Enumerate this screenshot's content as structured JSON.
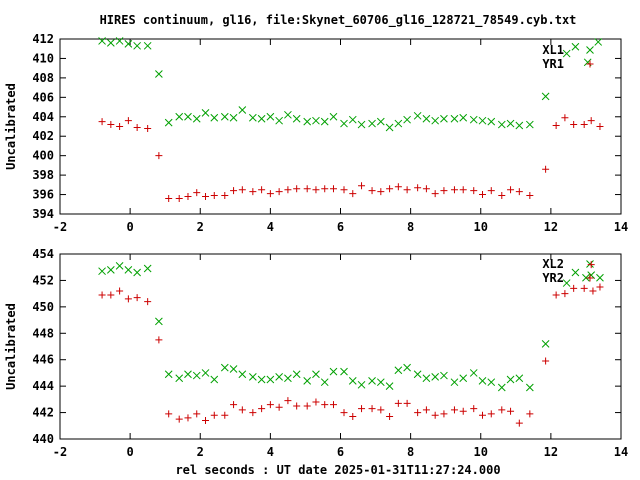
{
  "title": "HIRES continuum, gl16, file:Skynet_60706_gl16_128721_78549.cyb.txt",
  "xlabel": "rel seconds : UT date 2025-01-31T11:27:24.000",
  "colors": {
    "XL1": "#00a000",
    "YR1": "#cc0000",
    "XL2": "#00a000",
    "YR2": "#cc0000",
    "axes": "#000000"
  },
  "chart_data": [
    {
      "type": "scatter",
      "panel": "top",
      "ylabel": "Uncalibrated",
      "xlim": [
        -2,
        14
      ],
      "ylim": [
        394,
        412
      ],
      "xticks": [
        -2,
        0,
        2,
        4,
        6,
        8,
        10,
        12,
        14
      ],
      "yticks": [
        394,
        396,
        398,
        400,
        402,
        404,
        406,
        408,
        410,
        412
      ],
      "legend_position": "top-right",
      "grid": false,
      "series": [
        {
          "name": "XL1",
          "marker": "x",
          "points": [
            [
              -0.8,
              411.8
            ],
            [
              -0.55,
              411.6
            ],
            [
              -0.3,
              411.8
            ],
            [
              -0.05,
              411.5
            ],
            [
              0.2,
              411.3
            ],
            [
              0.5,
              411.3
            ],
            [
              0.82,
              408.4
            ],
            [
              1.1,
              403.4
            ],
            [
              1.4,
              404.0
            ],
            [
              1.65,
              404.0
            ],
            [
              1.9,
              403.8
            ],
            [
              2.15,
              404.4
            ],
            [
              2.4,
              403.9
            ],
            [
              2.7,
              404.0
            ],
            [
              2.95,
              403.9
            ],
            [
              3.2,
              404.7
            ],
            [
              3.5,
              403.9
            ],
            [
              3.75,
              403.8
            ],
            [
              4.0,
              404.0
            ],
            [
              4.25,
              403.6
            ],
            [
              4.5,
              404.2
            ],
            [
              4.75,
              403.8
            ],
            [
              5.05,
              403.5
            ],
            [
              5.3,
              403.6
            ],
            [
              5.55,
              403.5
            ],
            [
              5.8,
              404.0
            ],
            [
              6.1,
              403.3
            ],
            [
              6.35,
              403.7
            ],
            [
              6.6,
              403.2
            ],
            [
              6.9,
              403.3
            ],
            [
              7.15,
              403.5
            ],
            [
              7.4,
              402.9
            ],
            [
              7.65,
              403.3
            ],
            [
              7.9,
              403.7
            ],
            [
              8.2,
              404.1
            ],
            [
              8.45,
              403.8
            ],
            [
              8.7,
              403.6
            ],
            [
              8.95,
              403.8
            ],
            [
              9.25,
              403.8
            ],
            [
              9.5,
              403.9
            ],
            [
              9.8,
              403.7
            ],
            [
              10.05,
              403.6
            ],
            [
              10.3,
              403.5
            ],
            [
              10.6,
              403.2
            ],
            [
              10.85,
              403.3
            ],
            [
              11.1,
              403.1
            ],
            [
              11.4,
              403.2
            ],
            [
              11.85,
              406.1
            ],
            [
              12.45,
              410.5
            ],
            [
              12.7,
              411.2
            ],
            [
              13.05,
              409.6
            ],
            [
              13.35,
              411.7
            ]
          ]
        },
        {
          "name": "YR1",
          "marker": "+",
          "points": [
            [
              -0.8,
              403.5
            ],
            [
              -0.55,
              403.2
            ],
            [
              -0.3,
              403.0
            ],
            [
              -0.05,
              403.6
            ],
            [
              0.2,
              402.9
            ],
            [
              0.5,
              402.8
            ],
            [
              0.82,
              400.0
            ],
            [
              1.1,
              395.6
            ],
            [
              1.4,
              395.6
            ],
            [
              1.65,
              395.8
            ],
            [
              1.9,
              396.2
            ],
            [
              2.15,
              395.8
            ],
            [
              2.4,
              395.9
            ],
            [
              2.7,
              395.9
            ],
            [
              2.95,
              396.4
            ],
            [
              3.2,
              396.5
            ],
            [
              3.5,
              396.3
            ],
            [
              3.75,
              396.5
            ],
            [
              4.0,
              396.1
            ],
            [
              4.25,
              396.3
            ],
            [
              4.5,
              396.5
            ],
            [
              4.75,
              396.6
            ],
            [
              5.05,
              396.6
            ],
            [
              5.3,
              396.5
            ],
            [
              5.55,
              396.6
            ],
            [
              5.8,
              396.6
            ],
            [
              6.1,
              396.5
            ],
            [
              6.35,
              396.1
            ],
            [
              6.6,
              396.9
            ],
            [
              6.9,
              396.4
            ],
            [
              7.15,
              396.3
            ],
            [
              7.4,
              396.6
            ],
            [
              7.65,
              396.8
            ],
            [
              7.9,
              396.5
            ],
            [
              8.2,
              396.7
            ],
            [
              8.45,
              396.6
            ],
            [
              8.7,
              396.1
            ],
            [
              8.95,
              396.4
            ],
            [
              9.25,
              396.5
            ],
            [
              9.5,
              396.5
            ],
            [
              9.8,
              396.4
            ],
            [
              10.05,
              396.0
            ],
            [
              10.3,
              396.4
            ],
            [
              10.6,
              395.9
            ],
            [
              10.85,
              396.5
            ],
            [
              11.1,
              396.3
            ],
            [
              11.4,
              395.9
            ],
            [
              11.85,
              398.6
            ],
            [
              12.15,
              403.1
            ],
            [
              12.4,
              403.9
            ],
            [
              12.65,
              403.2
            ],
            [
              12.95,
              403.2
            ],
            [
              13.15,
              403.6
            ],
            [
              13.4,
              403.0
            ]
          ]
        }
      ]
    },
    {
      "type": "scatter",
      "panel": "bottom",
      "ylabel": "Uncalibrated",
      "xlim": [
        -2,
        14
      ],
      "ylim": [
        440,
        454
      ],
      "xticks": [
        -2,
        0,
        2,
        4,
        6,
        8,
        10,
        12,
        14
      ],
      "yticks": [
        440,
        442,
        444,
        446,
        448,
        450,
        452,
        454
      ],
      "legend_position": "top-right",
      "grid": false,
      "series": [
        {
          "name": "XL2",
          "marker": "x",
          "points": [
            [
              -0.8,
              452.7
            ],
            [
              -0.55,
              452.8
            ],
            [
              -0.3,
              453.1
            ],
            [
              -0.05,
              452.8
            ],
            [
              0.2,
              452.6
            ],
            [
              0.5,
              452.9
            ],
            [
              0.82,
              448.9
            ],
            [
              1.1,
              444.9
            ],
            [
              1.4,
              444.6
            ],
            [
              1.65,
              444.9
            ],
            [
              1.9,
              444.8
            ],
            [
              2.15,
              445.0
            ],
            [
              2.4,
              444.5
            ],
            [
              2.7,
              445.4
            ],
            [
              2.95,
              445.3
            ],
            [
              3.2,
              444.9
            ],
            [
              3.5,
              444.7
            ],
            [
              3.75,
              444.5
            ],
            [
              4.0,
              444.5
            ],
            [
              4.25,
              444.7
            ],
            [
              4.5,
              444.6
            ],
            [
              4.75,
              444.9
            ],
            [
              5.05,
              444.4
            ],
            [
              5.3,
              444.9
            ],
            [
              5.55,
              444.3
            ],
            [
              5.8,
              445.1
            ],
            [
              6.1,
              445.1
            ],
            [
              6.35,
              444.4
            ],
            [
              6.6,
              444.1
            ],
            [
              6.9,
              444.4
            ],
            [
              7.15,
              444.3
            ],
            [
              7.4,
              444.0
            ],
            [
              7.65,
              445.2
            ],
            [
              7.9,
              445.4
            ],
            [
              8.2,
              444.9
            ],
            [
              8.45,
              444.6
            ],
            [
              8.7,
              444.7
            ],
            [
              8.95,
              444.8
            ],
            [
              9.25,
              444.3
            ],
            [
              9.5,
              444.6
            ],
            [
              9.8,
              445.0
            ],
            [
              10.05,
              444.4
            ],
            [
              10.3,
              444.3
            ],
            [
              10.6,
              443.9
            ],
            [
              10.85,
              444.5
            ],
            [
              11.1,
              444.6
            ],
            [
              11.4,
              443.9
            ],
            [
              11.85,
              447.2
            ],
            [
              12.45,
              451.8
            ],
            [
              12.7,
              452.6
            ],
            [
              13.0,
              452.2
            ],
            [
              13.15,
              452.4
            ],
            [
              13.4,
              452.2
            ]
          ]
        },
        {
          "name": "YR2",
          "marker": "+",
          "points": [
            [
              -0.8,
              450.9
            ],
            [
              -0.55,
              450.9
            ],
            [
              -0.3,
              451.2
            ],
            [
              -0.05,
              450.6
            ],
            [
              0.2,
              450.7
            ],
            [
              0.5,
              450.4
            ],
            [
              0.82,
              447.5
            ],
            [
              1.1,
              441.9
            ],
            [
              1.4,
              441.5
            ],
            [
              1.65,
              441.6
            ],
            [
              1.9,
              441.9
            ],
            [
              2.15,
              441.4
            ],
            [
              2.4,
              441.8
            ],
            [
              2.7,
              441.8
            ],
            [
              2.95,
              442.6
            ],
            [
              3.2,
              442.2
            ],
            [
              3.5,
              442.0
            ],
            [
              3.75,
              442.3
            ],
            [
              4.0,
              442.6
            ],
            [
              4.25,
              442.4
            ],
            [
              4.5,
              442.9
            ],
            [
              4.75,
              442.5
            ],
            [
              5.05,
              442.5
            ],
            [
              5.3,
              442.8
            ],
            [
              5.55,
              442.6
            ],
            [
              5.8,
              442.6
            ],
            [
              6.1,
              442.0
            ],
            [
              6.35,
              441.7
            ],
            [
              6.6,
              442.3
            ],
            [
              6.9,
              442.3
            ],
            [
              7.15,
              442.2
            ],
            [
              7.4,
              441.7
            ],
            [
              7.65,
              442.7
            ],
            [
              7.9,
              442.7
            ],
            [
              8.2,
              442.0
            ],
            [
              8.45,
              442.2
            ],
            [
              8.7,
              441.8
            ],
            [
              8.95,
              441.9
            ],
            [
              9.25,
              442.2
            ],
            [
              9.5,
              442.1
            ],
            [
              9.8,
              442.3
            ],
            [
              10.05,
              441.8
            ],
            [
              10.3,
              441.9
            ],
            [
              10.6,
              442.2
            ],
            [
              10.85,
              442.1
            ],
            [
              11.1,
              441.2
            ],
            [
              11.4,
              441.9
            ],
            [
              11.85,
              445.9
            ],
            [
              12.15,
              450.9
            ],
            [
              12.4,
              451.0
            ],
            [
              12.65,
              451.4
            ],
            [
              12.95,
              451.4
            ],
            [
              13.15,
              453.2
            ],
            [
              13.2,
              451.2
            ],
            [
              13.4,
              451.5
            ]
          ]
        }
      ]
    }
  ]
}
